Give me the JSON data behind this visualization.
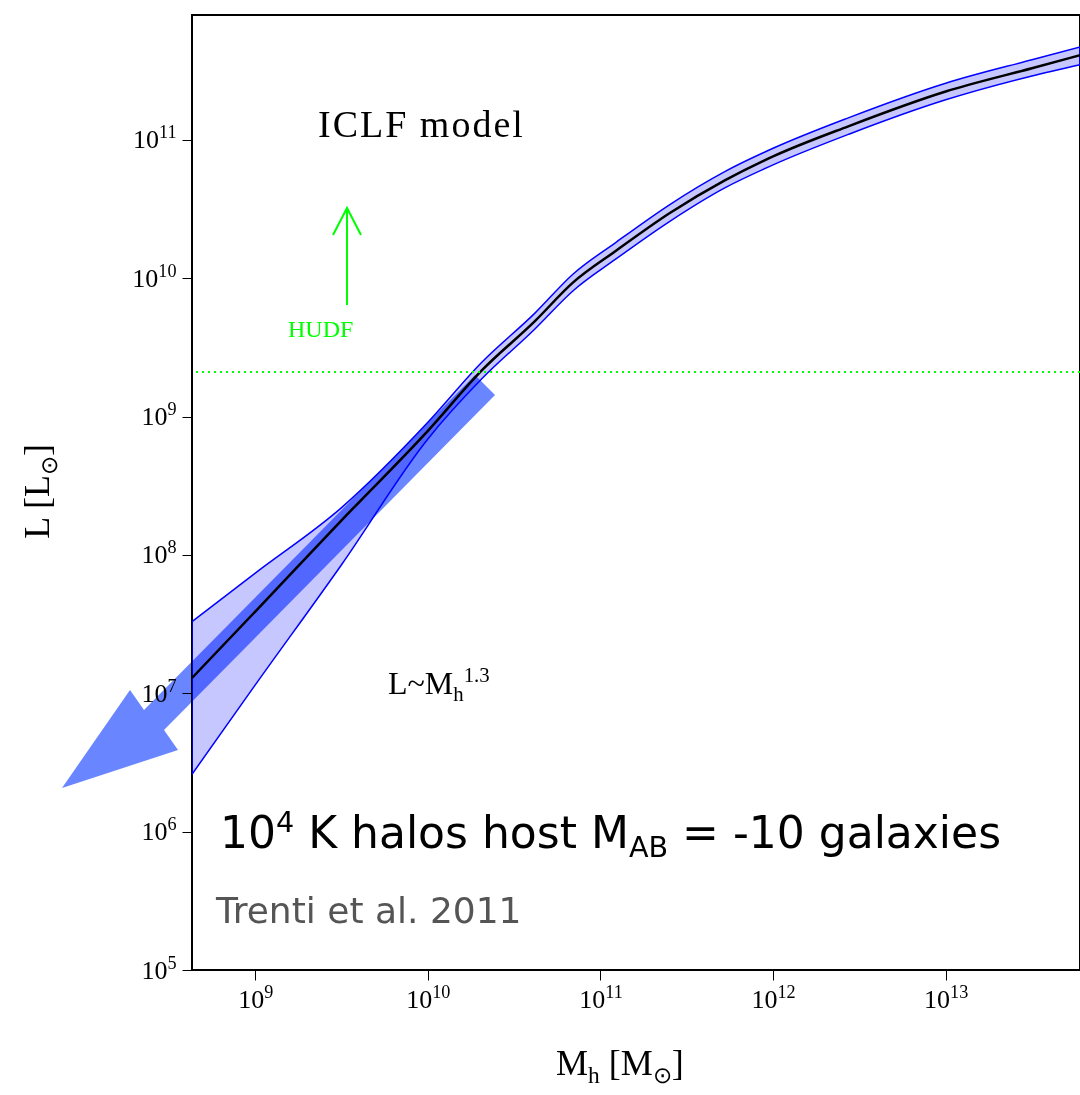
{
  "chart_data": {
    "type": "line",
    "xlabel": "M$_{h}$ [M$_{⊙}$]",
    "ylabel": "L [L$_{⊙}$]",
    "x": [
      430000000.0,
      1000000000.0,
      3160000000.0,
      10000000000.0,
      20400000000.0,
      41700000000.0,
      69200000000.0,
      123000000000.0,
      251000000000.0,
      525000000000.0,
      1000000000000.0,
      2750000000000.0,
      10000000000000.0,
      31600000000000.0,
      60000000000000.0
    ],
    "series": [
      {
        "color": "#000000",
        "values": [
          12900000.0,
          39000000.0,
          178000000.0,
          790000000.0,
          2140000000.0,
          4900000000.0,
          9300000000.0,
          15800000000.0,
          29500000000.0,
          51000000000.0,
          76000000000.0,
          126000000000.0,
          224000000000.0,
          330000000000.0,
          410000000000.0
        ],
        "upper": [
          33000000.0,
          74000000.0,
          220000000.0,
          910000000.0,
          2450000000.0,
          5600000000.0,
          10700000000.0,
          18200000000.0,
          34000000000.0,
          59000000000.0,
          87000000000.0,
          145000000000.0,
          257000000000.0,
          380000000000.0,
          470000000000.0
        ],
        "lower": [
          2600000.0,
          11500000.0,
          85000000.0,
          690000000.0,
          1860000000.0,
          4300000000.0,
          8100000000.0,
          13800000000.0,
          25700000000.0,
          45000000000.0,
          66000000000.0,
          110000000000.0,
          195000000000.0,
          290000000000.0,
          350000000000.0
        ]
      }
    ],
    "log": "xy",
    "xlim": [
      430000000.0,
      60000000000000.0
    ],
    "ylim": [
      100000.0,
      800000000000.0
    ],
    "xticks": [
      {
        "value": 1000000000.0,
        "label": "10$^{9}$"
      },
      {
        "value": 10000000000.0,
        "label": "10$^{10}$"
      },
      {
        "value": 100000000000.0,
        "label": "10$^{11}$"
      },
      {
        "value": 1000000000000.0,
        "label": "10$^{12}$"
      },
      {
        "value": 10000000000000.0,
        "label": "10$^{13}$"
      }
    ],
    "yticks": [
      {
        "value": 100000.0,
        "label": "10$^{5}$"
      },
      {
        "value": 1000000.0,
        "label": "10$^{6}$"
      },
      {
        "value": 10000000.0,
        "label": "10$^{7}$"
      },
      {
        "value": 100000000.0,
        "label": "10$^{8}$"
      },
      {
        "value": 1000000000.0,
        "label": "10$^{9}$"
      },
      {
        "value": 10000000000.0,
        "label": "10$^{10}$"
      },
      {
        "value": 100000000000.0,
        "label": "10$^{11}$"
      }
    ],
    "ref_lines": [
      {
        "axis": "y",
        "value": 2100000000.0,
        "label": "HUDF",
        "color": "#00ff00",
        "line_style": "dotted"
      }
    ],
    "annotations": [
      "ICLF model",
      "L~M$_{h}$$^{1.3}$",
      "10$^{4}$ K halos host M$_{AB}$ = -10 galaxies",
      "Trenti et al. 2011"
    ],
    "grid": false,
    "marker": "none",
    "line_style": "solid"
  }
}
